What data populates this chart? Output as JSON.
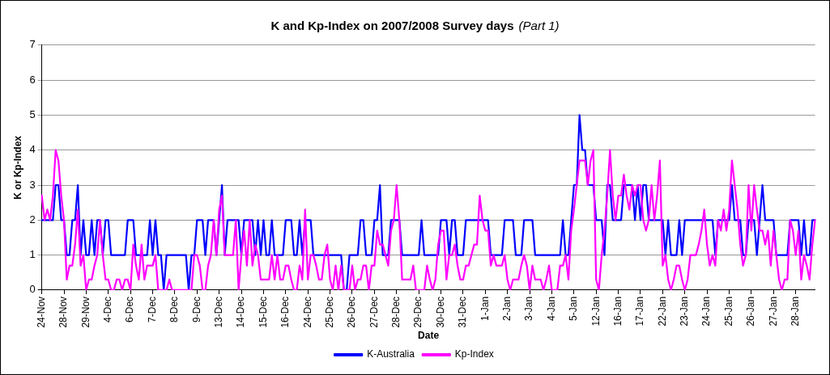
{
  "chart_data": {
    "type": "line",
    "title": "K and Kp-Index on 2007/2008 Survey days",
    "subtitle": "(Part 1)",
    "xlabel": "Date",
    "ylabel": "K or Kp-Index",
    "categories": [
      "24-Nov",
      null,
      null,
      null,
      null,
      null,
      null,
      null,
      "28-Nov",
      null,
      null,
      null,
      null,
      null,
      null,
      null,
      "29-Nov",
      null,
      null,
      null,
      null,
      null,
      null,
      null,
      "4-Dec",
      null,
      null,
      null,
      null,
      null,
      null,
      null,
      "6-Dec",
      null,
      null,
      null,
      null,
      null,
      null,
      null,
      "7-Dec",
      null,
      null,
      null,
      null,
      null,
      null,
      null,
      "8-Dec",
      null,
      null,
      null,
      null,
      null,
      null,
      null,
      "9-Dec",
      null,
      null,
      null,
      null,
      null,
      null,
      null,
      "13-Dec",
      null,
      null,
      null,
      null,
      null,
      null,
      null,
      "14-Dec",
      null,
      null,
      null,
      null,
      null,
      null,
      null,
      "15-Dec",
      null,
      null,
      null,
      null,
      null,
      null,
      null,
      "16-Dec",
      null,
      null,
      null,
      null,
      null,
      null,
      null,
      "24-Dec",
      null,
      null,
      null,
      null,
      null,
      null,
      null,
      "25-Dec",
      null,
      null,
      null,
      null,
      null,
      null,
      null,
      "26-Dec",
      null,
      null,
      null,
      null,
      null,
      null,
      null,
      "27-Dec",
      null,
      null,
      null,
      null,
      null,
      null,
      null,
      "28-Dec",
      null,
      null,
      null,
      null,
      null,
      null,
      null,
      "29-Dec",
      null,
      null,
      null,
      null,
      null,
      null,
      null,
      "30-Dec",
      null,
      null,
      null,
      null,
      null,
      null,
      null,
      "31-Dec",
      null,
      null,
      null,
      null,
      null,
      null,
      null,
      "1-Jan",
      null,
      null,
      null,
      null,
      null,
      null,
      null,
      "2-Jan",
      null,
      null,
      null,
      null,
      null,
      null,
      null,
      "3-Jan",
      null,
      null,
      null,
      null,
      null,
      null,
      null,
      "4-Jan",
      null,
      null,
      null,
      null,
      null,
      null,
      null,
      "5-Jan",
      null,
      null,
      null,
      null,
      null,
      null,
      null,
      "12-Jan",
      null,
      null,
      null,
      null,
      null,
      null,
      null,
      "16-Jan",
      null,
      null,
      null,
      null,
      null,
      null,
      null,
      "17-Jan",
      null,
      null,
      null,
      null,
      null,
      null,
      null,
      "22-Jan",
      null,
      null,
      null,
      null,
      null,
      null,
      null,
      "23-Jan",
      null,
      null,
      null,
      null,
      null,
      null,
      null,
      "24-Jan",
      null,
      null,
      null,
      null,
      null,
      null,
      null,
      "25-Jan",
      null,
      null,
      null,
      null,
      null,
      null,
      null,
      "26-Jan",
      null,
      null,
      null,
      null,
      null,
      null,
      null,
      "27-Jan",
      null,
      null,
      null,
      null,
      null,
      null,
      null,
      "28-Jan",
      null,
      null,
      null,
      null,
      null,
      null,
      null
    ],
    "ylim": [
      0,
      7
    ],
    "yticks": [
      0,
      1,
      2,
      3,
      4,
      5,
      6,
      7
    ],
    "grid": "y",
    "legend": "bottom",
    "marker": "none",
    "line_style": "solid",
    "series": [
      {
        "name": "K-Australia",
        "color": "#0000ff",
        "values": [
          2,
          2,
          2,
          2,
          2,
          3,
          3,
          2,
          2,
          1,
          1,
          2,
          2,
          3,
          1,
          2,
          1,
          1,
          2,
          1,
          2,
          2,
          1,
          2,
          2,
          1,
          1,
          1,
          1,
          1,
          1,
          2,
          2,
          2,
          1,
          1,
          1,
          1,
          1,
          2,
          1,
          2,
          1,
          1,
          0,
          1,
          1,
          1,
          1,
          1,
          1,
          1,
          1,
          0,
          1,
          1,
          2,
          2,
          2,
          1,
          2,
          2,
          2,
          1,
          2,
          3,
          1,
          2,
          2,
          2,
          2,
          2,
          1,
          2,
          2,
          2,
          2,
          1,
          2,
          1,
          2,
          1,
          1,
          2,
          1,
          1,
          1,
          1,
          2,
          2,
          2,
          1,
          1,
          2,
          1,
          2,
          2,
          2,
          1,
          1,
          1,
          1,
          1,
          1,
          1,
          1,
          1,
          1,
          1,
          0,
          0,
          1,
          1,
          1,
          1,
          2,
          2,
          1,
          1,
          1,
          2,
          2,
          3,
          1,
          1,
          1,
          2,
          2,
          2,
          2,
          1,
          1,
          1,
          1,
          1,
          1,
          1,
          2,
          1,
          1,
          1,
          1,
          1,
          1,
          2,
          2,
          2,
          1,
          2,
          2,
          1,
          1,
          1,
          2,
          2,
          2,
          2,
          2,
          2,
          2,
          2,
          2,
          1,
          1,
          1,
          1,
          1,
          2,
          2,
          2,
          2,
          1,
          1,
          1,
          2,
          2,
          2,
          2,
          1,
          1,
          1,
          1,
          1,
          1,
          1,
          1,
          1,
          1,
          2,
          1,
          1,
          2,
          3,
          3,
          5,
          4,
          4,
          3,
          3,
          3,
          2,
          2,
          2,
          1,
          3,
          3,
          2,
          2,
          2,
          2,
          3,
          3,
          3,
          3,
          2,
          3,
          2,
          3,
          3,
          2,
          2,
          2,
          2,
          2,
          2,
          1,
          2,
          1,
          1,
          1,
          2,
          1,
          2,
          2,
          2,
          2,
          2,
          2,
          2,
          2,
          2,
          2,
          2,
          1,
          2,
          2,
          2,
          2,
          2,
          3,
          2,
          2,
          2,
          1,
          1,
          2,
          2,
          2,
          1,
          2,
          3,
          2,
          2,
          2,
          2,
          1,
          1,
          1,
          1,
          1,
          2,
          2,
          2,
          2,
          1,
          2,
          1,
          1,
          2,
          2
        ]
      },
      {
        "name": "Kp-Index",
        "color": "#ff00ff",
        "values": [
          2.7,
          2,
          2.3,
          2,
          2.7,
          4,
          3.7,
          2.7,
          2,
          0.3,
          0.7,
          0.7,
          1.3,
          2.3,
          0.7,
          1,
          0,
          0.3,
          0.3,
          0.7,
          1,
          2,
          1,
          0.3,
          0.3,
          0,
          0,
          0.3,
          0.3,
          0,
          0.3,
          0.3,
          0,
          1.3,
          0.7,
          0.3,
          1.3,
          0.3,
          0.7,
          0.7,
          0.7,
          1,
          0,
          0,
          0,
          0,
          0.3,
          0,
          0,
          0,
          0,
          0,
          0,
          0,
          0,
          1,
          1,
          0.7,
          0,
          0,
          0.7,
          1,
          2,
          1,
          2.3,
          2.7,
          1,
          1,
          1,
          1,
          2,
          0,
          1,
          1.7,
          0.7,
          2,
          0.7,
          1.3,
          1,
          0.3,
          0.3,
          0.3,
          0.3,
          1,
          0.3,
          1,
          0.3,
          0.3,
          0.7,
          0.7,
          0.3,
          0,
          0,
          0.7,
          0.3,
          2.3,
          0.3,
          1,
          1,
          0.7,
          0.3,
          0.3,
          1,
          1.3,
          0.3,
          0,
          0.7,
          0,
          0.7,
          0,
          0,
          0,
          0.7,
          0,
          0.3,
          0.3,
          0.7,
          0.7,
          0,
          0.7,
          0.7,
          1.7,
          1.3,
          1.3,
          1,
          0.7,
          1.7,
          2,
          3,
          2,
          0.3,
          0.3,
          0.3,
          0.3,
          0.7,
          0,
          0,
          0,
          0,
          0.7,
          0.3,
          0,
          0.3,
          1.3,
          1.7,
          1.7,
          0.3,
          1,
          1,
          1.3,
          0.7,
          0.3,
          0.3,
          0.7,
          0.7,
          1,
          1.3,
          1.3,
          2.7,
          2,
          1.7,
          1.7,
          0.7,
          1,
          0.7,
          0.7,
          0.7,
          1,
          0.3,
          0,
          0.3,
          0.3,
          0.3,
          0.7,
          1,
          0.7,
          0,
          0.7,
          0.3,
          0.3,
          0.3,
          0,
          0.3,
          0.7,
          0,
          0,
          0,
          0.7,
          0.7,
          1,
          0.3,
          1.7,
          2.3,
          3,
          3.7,
          3.7,
          3.7,
          3,
          3.7,
          4,
          0.3,
          0,
          1,
          1.7,
          2.7,
          4,
          2.7,
          2,
          2.7,
          2.7,
          3.3,
          2.7,
          2.3,
          3,
          2.7,
          3,
          3,
          2,
          1.7,
          2,
          3,
          2,
          2.7,
          3.7,
          0.7,
          1,
          0.3,
          0,
          0.3,
          0.7,
          0.7,
          0.3,
          0,
          0.3,
          1,
          1,
          1,
          1.3,
          1.7,
          2.3,
          1.3,
          0.7,
          1,
          0.7,
          2,
          1.7,
          2.3,
          1.7,
          2.3,
          3.7,
          3,
          2.3,
          1.3,
          0.7,
          1,
          3,
          1.7,
          3,
          2.3,
          1.7,
          1.7,
          1.3,
          1.7,
          0.7,
          1.7,
          1,
          0.3,
          0,
          0.3,
          0.3,
          2,
          1.7,
          1,
          1.7,
          0.3,
          1,
          0.7,
          0.3,
          1.3,
          2
        ]
      }
    ]
  }
}
